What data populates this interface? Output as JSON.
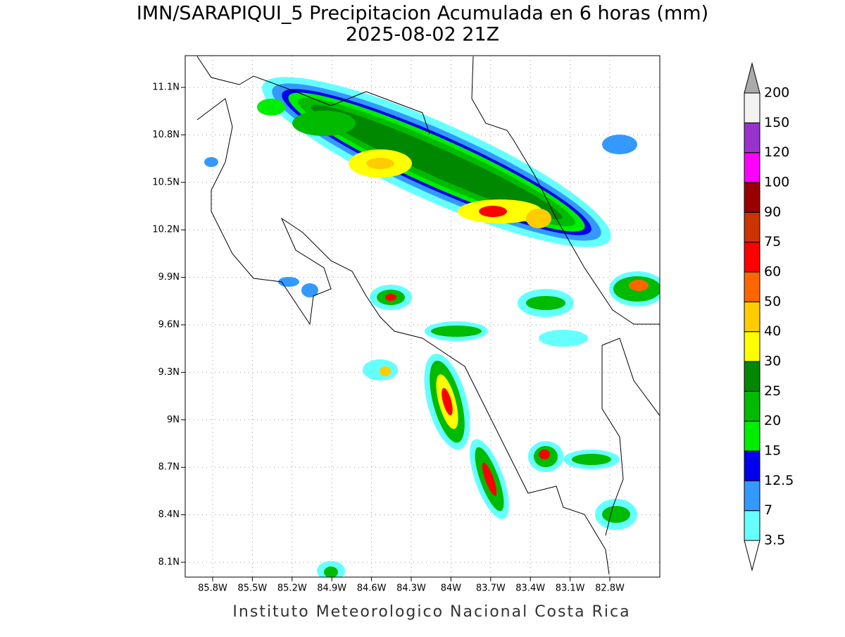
{
  "title": "IMN/SARAPIQUI_5 Precipitacion Acumulada en 6 horas (mm)",
  "subtitle": "2025-08-02 21Z",
  "map": {
    "lat_labels": [
      "11.1N",
      "10.8N",
      "10.5N",
      "10.2N",
      "9.9N",
      "9.6N",
      "9.3N",
      "9N",
      "8.7N",
      "8.4N",
      "8.1N"
    ],
    "lon_labels": [
      "85.8W",
      "85.5W",
      "85.2W",
      "84.9W",
      "84.6W",
      "84.3W",
      "84W",
      "83.7W",
      "83.4W",
      "83.1W",
      "82.8W"
    ]
  },
  "colorbar": {
    "levels": [
      3.5,
      7,
      12.5,
      15,
      20,
      25,
      30,
      40,
      50,
      60,
      75,
      90,
      100,
      120,
      150,
      200
    ],
    "colors": [
      "#66ffff",
      "#3399ff",
      "#0000ee",
      "#00ee00",
      "#00bb00",
      "#008800",
      "#ffff00",
      "#ffcc00",
      "#ff6600",
      "#ff0000",
      "#cc3300",
      "#990000",
      "#ff00ff",
      "#9933cc",
      "#f2f2f2"
    ],
    "over_color": "#aaaaaa",
    "under_color": "#ffffff"
  },
  "footer": "Instituto Meteorologico Nacional Costa Rica"
}
